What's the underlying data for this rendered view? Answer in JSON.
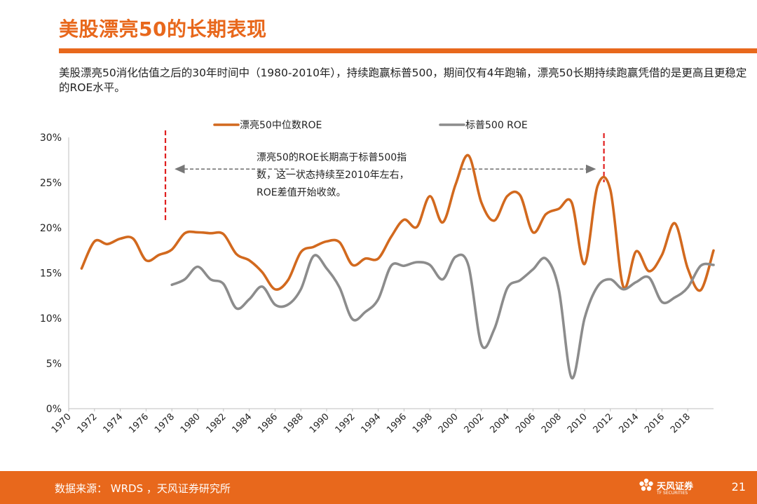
{
  "page": {
    "title": "美股漂亮50的长期表现",
    "subtitle": "美股漂亮50消化估值之后的30年时间中（1980-2010年），持续跑赢标普500，期间仅有4年跑输，漂亮50长期持续跑赢凭借的是更高且更稳定的ROE水平。",
    "footer_source": "数据来源： WRDS ，天风证券研究所",
    "page_number": "21",
    "logo_name": "天风证券",
    "logo_sub": "TF SECURITIES"
  },
  "colors": {
    "accent": "#e8681c",
    "series1": "#d2691e",
    "series2": "#8c8c8c",
    "marker": "#e02020"
  },
  "chart_data": {
    "type": "line",
    "ylim": [
      0,
      30
    ],
    "y_ticks": [
      0,
      5,
      10,
      15,
      20,
      25,
      30
    ],
    "y_tick_labels": [
      "0%",
      "5%",
      "10%",
      "15%",
      "20%",
      "25%",
      "30%"
    ],
    "xlim": [
      1970,
      2020
    ],
    "x_ticks": [
      1970,
      1972,
      1974,
      1976,
      1978,
      1980,
      1982,
      1984,
      1986,
      1988,
      1990,
      1992,
      1994,
      1996,
      1998,
      2000,
      2002,
      2004,
      2006,
      2008,
      2010,
      2012,
      2014,
      2016,
      2018
    ],
    "x_tick_labels": [
      "1970",
      "1972",
      "1974",
      "1976",
      "1978",
      "1980",
      "1982",
      "1984",
      "1986",
      "1988",
      "1990",
      "1992",
      "1994",
      "1996",
      "1998",
      "2000",
      "2002",
      "2004",
      "2006",
      "2008",
      "2010",
      "2012",
      "2014",
      "2016",
      "2018"
    ],
    "legend_position": "top",
    "series": [
      {
        "name": "漂亮50中位数ROE",
        "x": [
          1971,
          1972,
          1973,
          1974,
          1975,
          1976,
          1977,
          1978,
          1979,
          1980,
          1981,
          1982,
          1983,
          1984,
          1985,
          1986,
          1987,
          1988,
          1989,
          1990,
          1991,
          1992,
          1993,
          1994,
          1995,
          1996,
          1997,
          1998,
          1999,
          2000,
          2001,
          2002,
          2003,
          2004,
          2005,
          2006,
          2007,
          2008,
          2009,
          2010,
          2011,
          2012,
          2013,
          2014,
          2015,
          2016,
          2017,
          2018,
          2019,
          2020
        ],
        "values": [
          15.5,
          18.5,
          18.2,
          18.8,
          18.8,
          16.4,
          17.0,
          17.6,
          19.4,
          19.5,
          19.4,
          19.3,
          17.1,
          16.4,
          15.1,
          13.2,
          14.2,
          17.3,
          17.9,
          18.5,
          18.4,
          15.9,
          16.6,
          16.6,
          19.0,
          20.9,
          20.1,
          23.5,
          20.6,
          24.8,
          28.0,
          22.8,
          20.8,
          23.5,
          23.6,
          19.5,
          21.5,
          22.1,
          22.8,
          16.0,
          24.6,
          24.2,
          13.5,
          17.4,
          15.2,
          17.0,
          20.5,
          15.5,
          13.1,
          17.5
        ]
      },
      {
        "name": "标普500 ROE",
        "x": [
          1978,
          1979,
          1980,
          1981,
          1982,
          1983,
          1984,
          1985,
          1986,
          1987,
          1988,
          1989,
          1990,
          1991,
          1992,
          1993,
          1994,
          1995,
          1996,
          1997,
          1998,
          1999,
          2000,
          2001,
          2002,
          2003,
          2004,
          2005,
          2006,
          2007,
          2008,
          2009,
          2010,
          2011,
          2012,
          2013,
          2014,
          2015,
          2016,
          2017,
          2018,
          2019,
          2020
        ],
        "values": [
          13.7,
          14.3,
          15.7,
          14.3,
          13.8,
          11.1,
          12.1,
          13.5,
          11.5,
          11.5,
          13.2,
          16.9,
          15.5,
          13.4,
          9.9,
          10.7,
          12.1,
          15.8,
          15.8,
          16.2,
          15.9,
          14.3,
          16.8,
          15.8,
          7.1,
          8.8,
          13.3,
          14.2,
          15.4,
          16.6,
          13.2,
          3.4,
          10.0,
          13.5,
          14.3,
          13.2,
          14.0,
          14.5,
          11.8,
          12.3,
          13.4,
          15.8,
          15.9
        ]
      }
    ],
    "reference_lines_x": [
      1977.5,
      2011.5
    ],
    "annotation": {
      "lines": [
        "漂亮50的ROE长期高于标普500指",
        "数，这一状态持续至2010年左右，",
        "ROE差值开始收敛。"
      ],
      "arrows": [
        [
          1987.5,
          1978.3
        ],
        [
          2000.5,
          2010.8
        ]
      ],
      "arrow_y": 26.5
    }
  }
}
